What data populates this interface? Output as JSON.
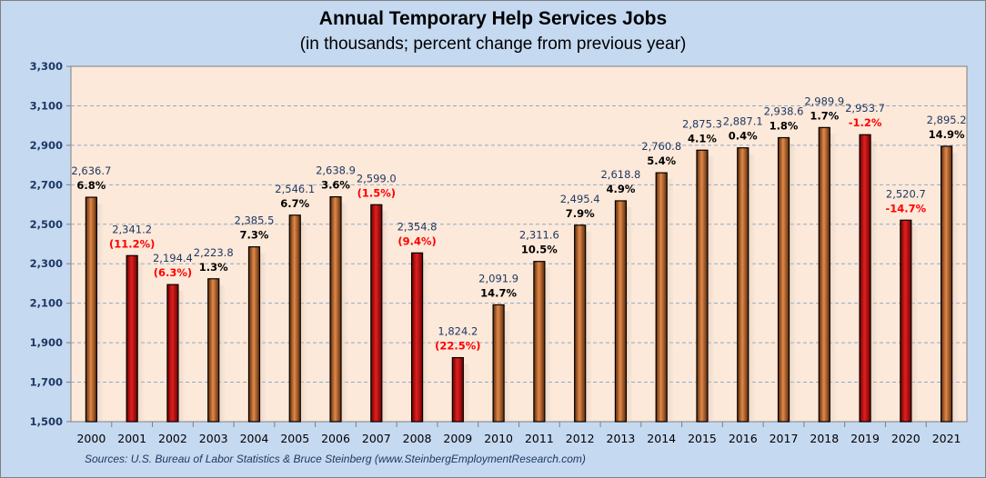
{
  "chart_data": {
    "type": "bar",
    "title": "Annual Temporary Help Services Jobs",
    "subtitle": "(in thousands; percent change from previous year)",
    "source": "Sources: U.S. Bureau of Labor Statistics & Bruce Steinberg (www.SteinbergEmploymentResearch.com)",
    "xlabel": "",
    "ylabel": "",
    "ylim": [
      1500,
      3300
    ],
    "yticks": [
      "1,500",
      "1,700",
      "1,900",
      "2,100",
      "2,300",
      "2,500",
      "2,700",
      "2,900",
      "3,100",
      "3,300"
    ],
    "grid": true,
    "colors": {
      "increase": "#a0561e",
      "decrease": "#c00000",
      "plot_background": "#fde9d9",
      "frame": "#c5d9f1",
      "negative_text": "#ff0000",
      "positive_text": "#000000",
      "value_text": "#1f3864"
    },
    "categories": [
      "2000",
      "2001",
      "2002",
      "2003",
      "2004",
      "2005",
      "2006",
      "2007",
      "2008",
      "2009",
      "2010",
      "2011",
      "2012",
      "2013",
      "2014",
      "2015",
      "2016",
      "2017",
      "2018",
      "2019",
      "2020",
      "2021"
    ],
    "values": [
      2636.7,
      2341.2,
      2194.4,
      2223.8,
      2385.5,
      2546.1,
      2638.9,
      2599.0,
      2354.8,
      1824.2,
      2091.9,
      2311.6,
      2495.4,
      2618.8,
      2760.8,
      2875.3,
      2887.1,
      2938.6,
      2989.9,
      2953.7,
      2520.7,
      2895.2
    ],
    "value_labels": [
      "2,636.7",
      "2,341.2",
      "2,194.4",
      "2,223.8",
      "2,385.5",
      "2,546.1",
      "2,638.9",
      "2,599.0",
      "2,354.8",
      "1,824.2",
      "2,091.9",
      "2,311.6",
      "2,495.4",
      "2,618.8",
      "2,760.8",
      "2,875.3",
      "2,887.1",
      "2,938.6",
      "2,989.9",
      "2,953.7",
      "2,520.7",
      "2,895.2"
    ],
    "pct_labels": [
      "6.8%",
      "(11.2%)",
      "(6.3%)",
      "1.3%",
      "7.3%",
      "6.7%",
      "3.6%",
      "(1.5%)",
      "(9.4%)",
      "(22.5%)",
      "14.7%",
      "10.5%",
      "7.9%",
      "4.9%",
      "5.4%",
      "4.1%",
      "0.4%",
      "1.8%",
      "1.7%",
      "-1.2%",
      "-14.7%",
      "14.9%"
    ],
    "decline": [
      false,
      true,
      true,
      false,
      false,
      false,
      false,
      true,
      true,
      true,
      false,
      false,
      false,
      false,
      false,
      false,
      false,
      false,
      false,
      true,
      true,
      false
    ]
  }
}
